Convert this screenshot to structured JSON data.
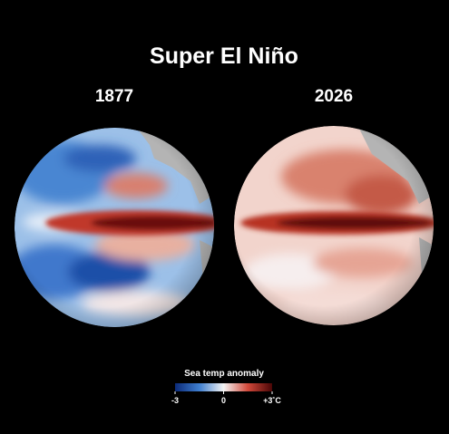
{
  "title": "Super El Niño",
  "globes": [
    {
      "label": "1877"
    },
    {
      "label": "2026"
    }
  ],
  "legend": {
    "title": "Sea temp anomaly",
    "range": [
      -3,
      3
    ],
    "ticks": [
      -3,
      0,
      {
        "value": 3,
        "label": "+3˚C"
      }
    ]
  }
}
